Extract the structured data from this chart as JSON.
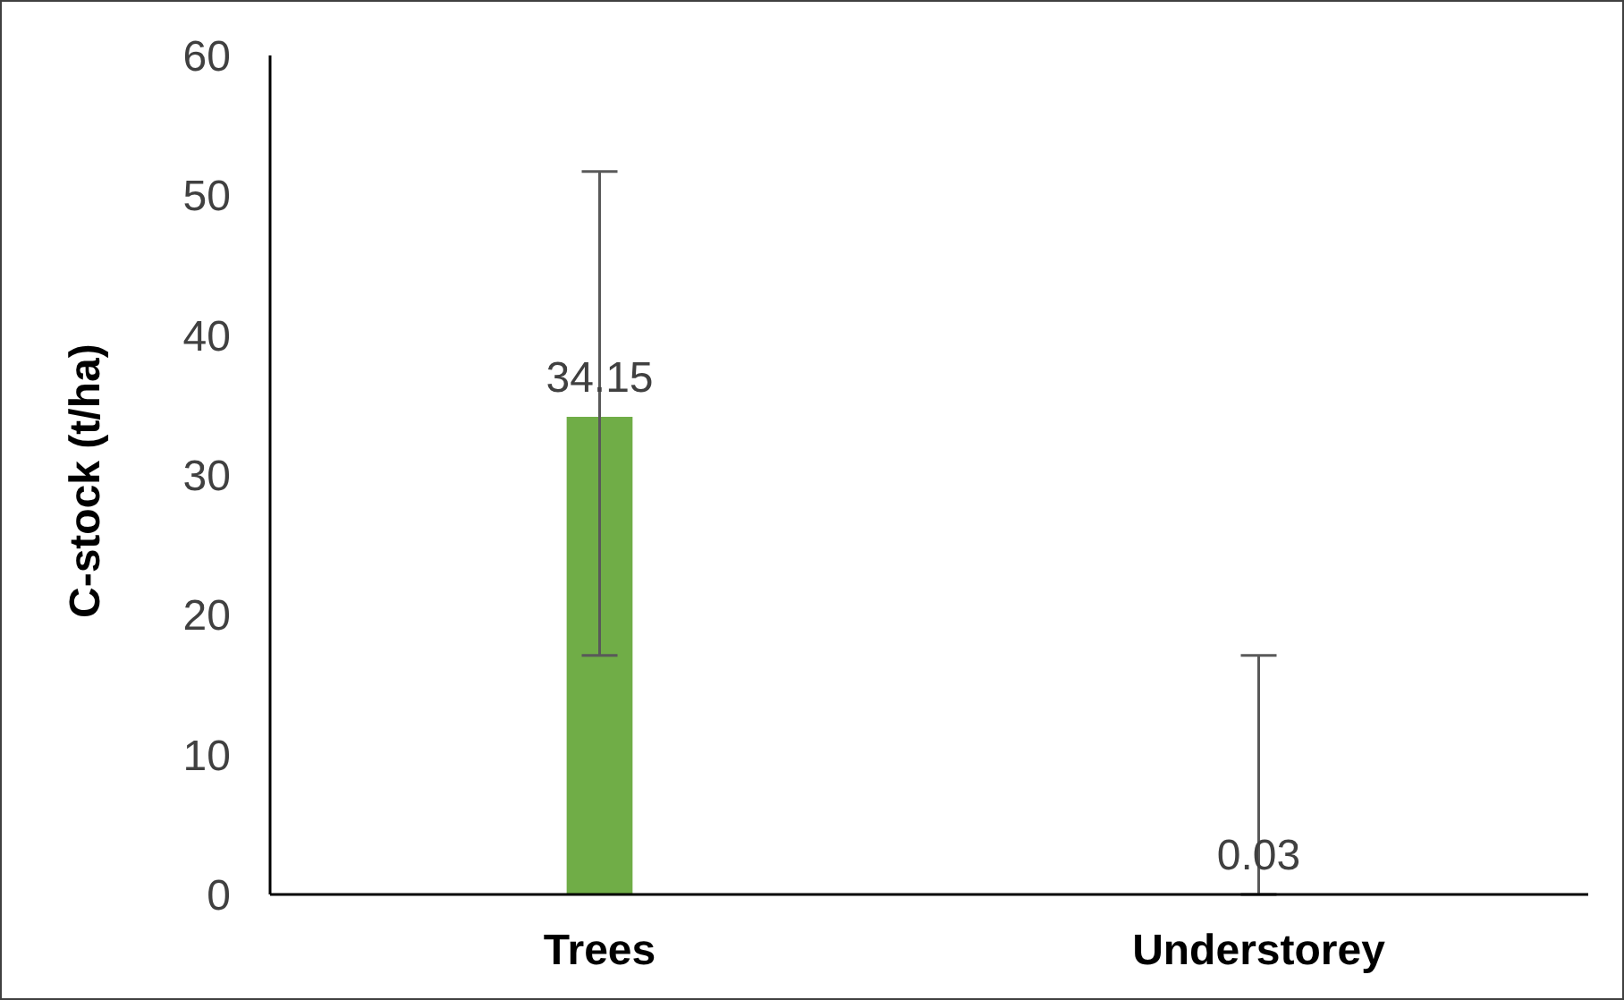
{
  "chart_data": {
    "type": "bar",
    "ylabel": "C-stock (t/ha)",
    "categories": [
      "Trees",
      "Understorey"
    ],
    "values": [
      34.15,
      0.03
    ],
    "color": "#70ad47",
    "errors": [
      [
        17.1,
        51.7
      ],
      [
        0,
        17.1
      ]
    ],
    "data_labels": true,
    "ylim": [
      0,
      60
    ],
    "yticks": [
      0,
      10,
      20,
      30,
      40,
      50,
      60
    ],
    "grid": false,
    "legend": false
  }
}
